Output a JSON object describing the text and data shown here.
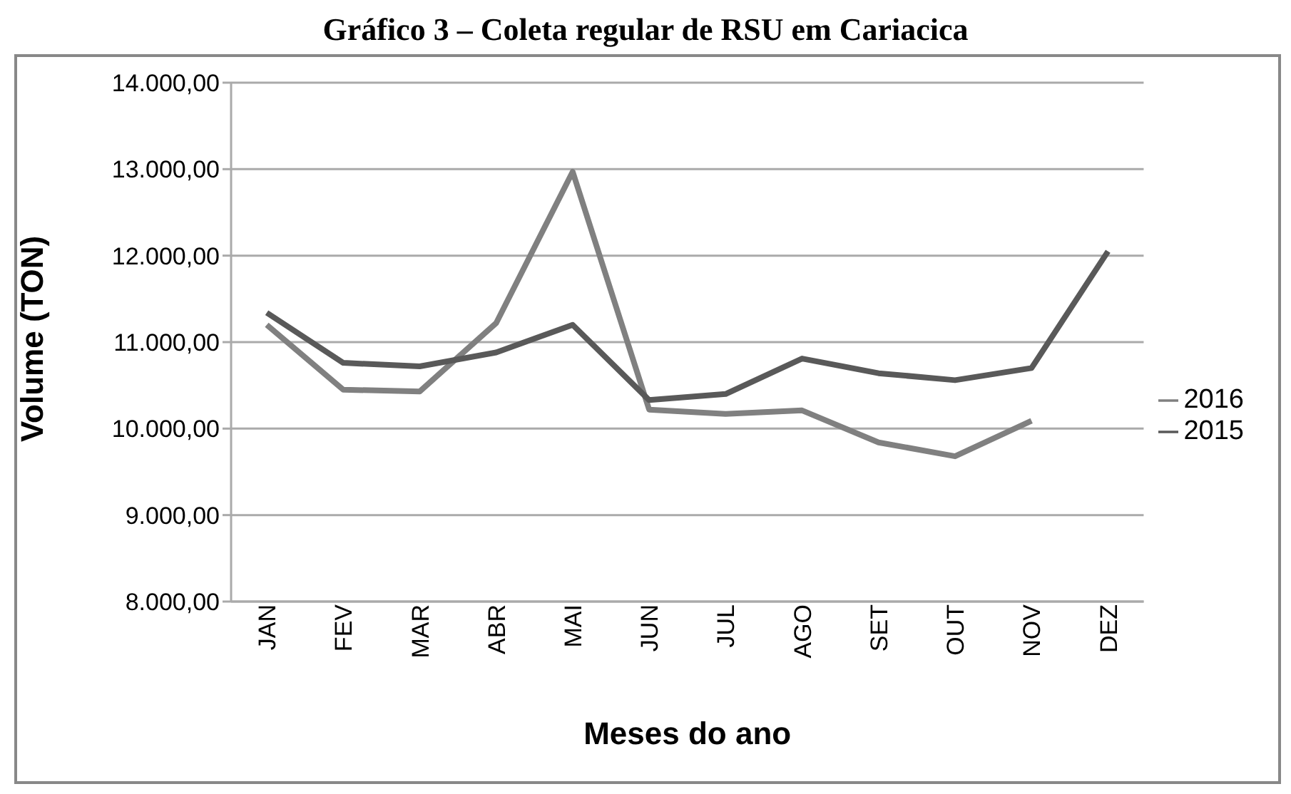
{
  "chart_data": {
    "type": "line",
    "title": "Gráfico 3 – Coleta regular de RSU em Cariacica",
    "xlabel": "Meses do ano",
    "ylabel": "Volume (TON)",
    "categories": [
      "JAN",
      "FEV",
      "MAR",
      "ABR",
      "MAI",
      "JUN",
      "JUL",
      "AGO",
      "SET",
      "OUT",
      "NOV",
      "DEZ"
    ],
    "series": [
      {
        "name": "2016",
        "color": "#808080",
        "values": [
          11200,
          10450,
          10430,
          11220,
          12970,
          10220,
          10170,
          10210,
          9840,
          9680,
          10090,
          null
        ]
      },
      {
        "name": "2015",
        "color": "#595959",
        "values": [
          11340,
          10760,
          10720,
          10880,
          11200,
          10330,
          10400,
          10810,
          10640,
          10560,
          10700,
          12050
        ]
      }
    ],
    "ylim": [
      8000,
      14000
    ],
    "yticks": [
      {
        "value": 8000,
        "label": "8.000,00"
      },
      {
        "value": 9000,
        "label": "9.000,00"
      },
      {
        "value": 10000,
        "label": "10.000,00"
      },
      {
        "value": 11000,
        "label": "11.000,00"
      },
      {
        "value": 12000,
        "label": "12.000,00"
      },
      {
        "value": 13000,
        "label": "13.000,00"
      },
      {
        "value": 14000,
        "label": "14.000,00"
      }
    ],
    "grid": "y",
    "legend": "right",
    "marker": "none",
    "line_style": "solid"
  }
}
